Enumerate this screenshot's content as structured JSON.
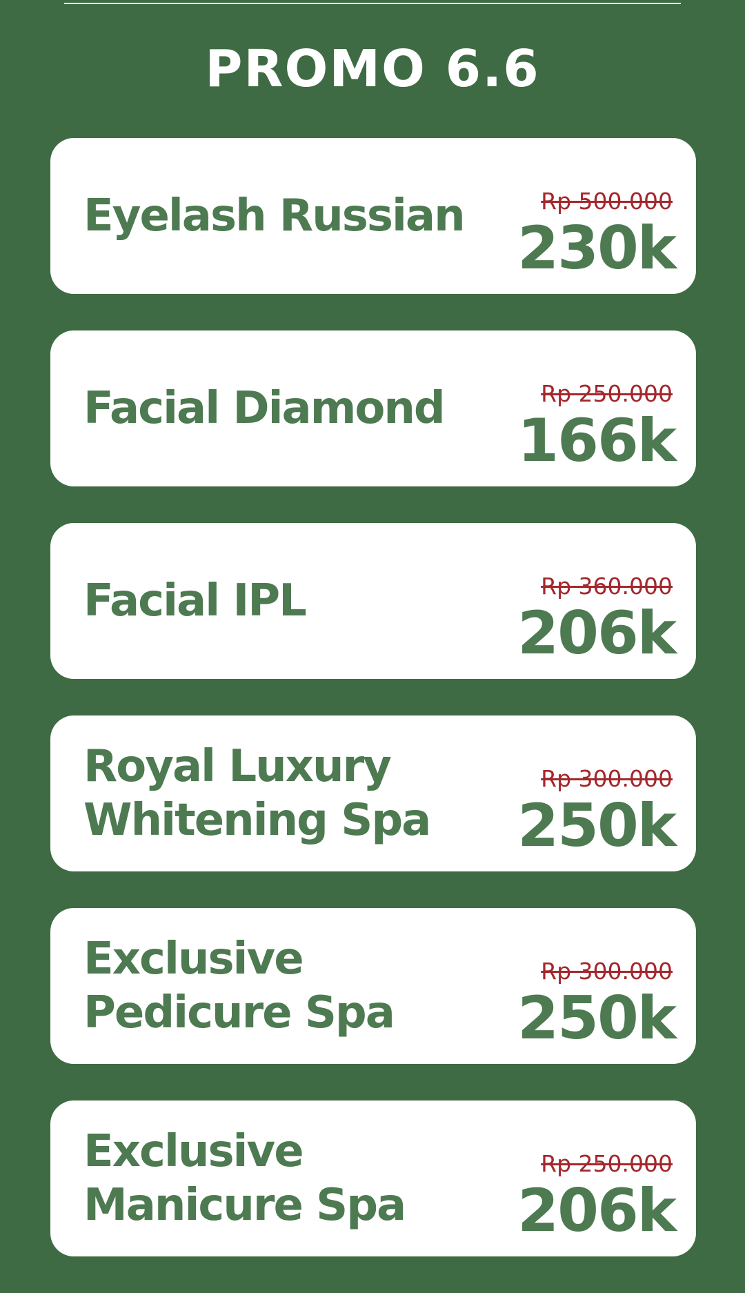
{
  "title": "PROMO 6.6",
  "colors": {
    "background": "#3e6b43",
    "card": "#ffffff",
    "name_text": "#4d7a51",
    "old_price": "#a3272c"
  },
  "promos": [
    {
      "name": "Eyelash Russian",
      "old_price": "Rp 500.000",
      "price": "230k"
    },
    {
      "name": "Facial Diamond",
      "old_price": "Rp 250.000",
      "price": "166k"
    },
    {
      "name": "Facial IPL",
      "old_price": "Rp 360.000",
      "price": "206k"
    },
    {
      "name": "Royal Luxury Whitening Spa",
      "old_price": "Rp 300.000",
      "price": "250k"
    },
    {
      "name": "Exclusive Pedicure Spa",
      "old_price": "Rp 300.000",
      "price": "250k"
    },
    {
      "name": "Exclusive Manicure Spa",
      "old_price": "Rp 250.000",
      "price": "206k"
    }
  ]
}
